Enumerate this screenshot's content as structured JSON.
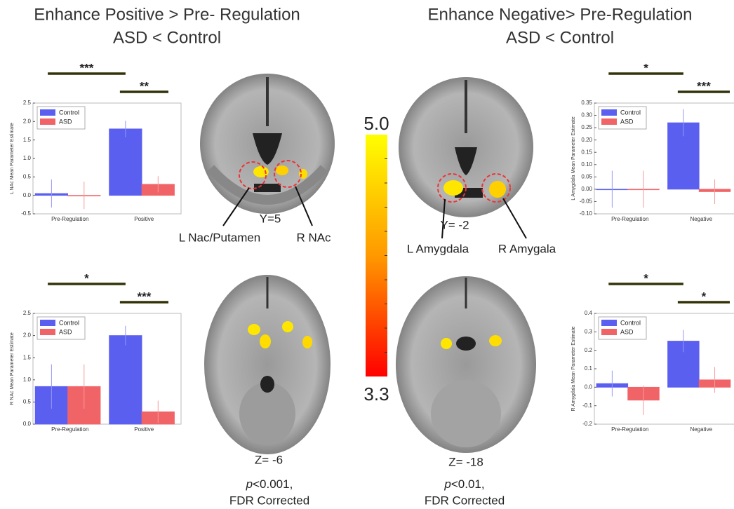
{
  "titles": [
    {
      "line1": "Enhance Positive > Pre- Regulation",
      "line2": "ASD < Control"
    },
    {
      "line1": "Enhance Negative> Pre-Regulation",
      "line2": "ASD < Control"
    }
  ],
  "brain_labels": [
    "Y=5",
    "L Nac/Putamen",
    "R NAc",
    "Z= -6",
    "Y= -2",
    "L Amygdala",
    "R Amygala",
    "Z= -18"
  ],
  "thresholds": [
    {
      "italic": "p",
      "rest": "<0.001,",
      "line2": "FDR Corrected"
    },
    {
      "italic": "p",
      "rest": "<0.01,",
      "line2": "FDR Corrected"
    }
  ],
  "colorbar": {
    "ticks": [
      {
        "value": 5.0,
        "label": "5.0"
      },
      {
        "value": 3.3,
        "label": "3.3"
      }
    ],
    "colors": [
      "#ffff00",
      "#ff9900",
      "#ff0000"
    ]
  },
  "chart_data": [
    {
      "type": "bar",
      "ylabel": "L NAc Mean Parameter Estimate",
      "categories": [
        "Pre-Regulation",
        "Positive"
      ],
      "series": [
        {
          "name": "Control",
          "color": "#5a5ff0",
          "values": [
            0.05,
            1.8
          ],
          "errors": [
            0.38,
            0.22
          ]
        },
        {
          "name": "ASD",
          "color": "#f06467",
          "values": [
            0.0,
            0.3
          ],
          "errors": [
            0.37,
            0.22
          ]
        }
      ],
      "ylim": [
        -0.5,
        2.5
      ],
      "yticks": [
        {
          "value": -0.5,
          "label": "-0.5"
        },
        {
          "value": 0,
          "label": "0.0"
        },
        0.5,
        {
          "value": 1,
          "label": "1.0"
        },
        1.5,
        {
          "value": 2,
          "label": "2.0"
        },
        2.5
      ],
      "annotations": [
        "***",
        "**"
      ],
      "legend": "upper left"
    },
    {
      "type": "bar",
      "ylabel": "R NAc Mean Parameter Estimate",
      "categories": [
        "Pre-Regulation",
        "Positive"
      ],
      "series": [
        {
          "name": "Control",
          "color": "#5a5ff0",
          "values": [
            0.85,
            2.0
          ],
          "errors": [
            0.5,
            0.22
          ]
        },
        {
          "name": "ASD",
          "color": "#f06467",
          "values": [
            0.85,
            0.28
          ],
          "errors": [
            0.5,
            0.25
          ]
        }
      ],
      "ylim": [
        0,
        2.5
      ],
      "yticks": [
        {
          "value": 0,
          "label": "0.0"
        },
        0.5,
        {
          "value": 1,
          "label": "1.0"
        },
        1.5,
        {
          "value": 2,
          "label": "2.0"
        },
        2.5
      ],
      "annotations": [
        "*",
        "***"
      ],
      "legend": "upper left"
    },
    {
      "type": "bar",
      "ylabel": "L Amygdala Mean Parameter Estimate",
      "categories": [
        "Pre-Regulation",
        "Negative"
      ],
      "series": [
        {
          "name": "Control",
          "color": "#5a5ff0",
          "values": [
            0.0,
            0.27
          ],
          "errors": [
            0.075,
            0.055
          ]
        },
        {
          "name": "ASD",
          "color": "#f06467",
          "values": [
            0.0,
            -0.01
          ],
          "errors": [
            0.075,
            0.05
          ]
        }
      ],
      "ylim": [
        -0.1,
        0.35
      ],
      "yticks": [
        {
          "value": -0.1,
          "label": "-0.10"
        },
        -0.05,
        {
          "value": 0,
          "label": "0.00"
        },
        0.05,
        {
          "value": 0.1,
          "label": "0.10"
        },
        0.15,
        {
          "value": 0.2,
          "label": "0.20"
        },
        0.25,
        {
          "value": 0.3,
          "label": "0.30"
        },
        0.35
      ],
      "annotations": [
        "*",
        "***"
      ],
      "legend": "upper left"
    },
    {
      "type": "bar",
      "ylabel": "R Amygdala Mean Parameter Estimate",
      "categories": [
        "Pre-Regulation",
        "Negative"
      ],
      "series": [
        {
          "name": "Control",
          "color": "#5a5ff0",
          "values": [
            0.02,
            0.25
          ],
          "errors": [
            0.07,
            0.06
          ]
        },
        {
          "name": "ASD",
          "color": "#f06467",
          "values": [
            -0.07,
            0.04
          ],
          "errors": [
            0.08,
            0.07
          ]
        }
      ],
      "ylim": [
        -0.2,
        0.4
      ],
      "yticks": [
        -0.2,
        -0.1,
        {
          "value": 0,
          "label": "0.0"
        },
        0.1,
        0.2,
        0.3,
        0.4
      ],
      "annotations": [
        "*",
        "*"
      ],
      "legend": "upper left"
    }
  ]
}
